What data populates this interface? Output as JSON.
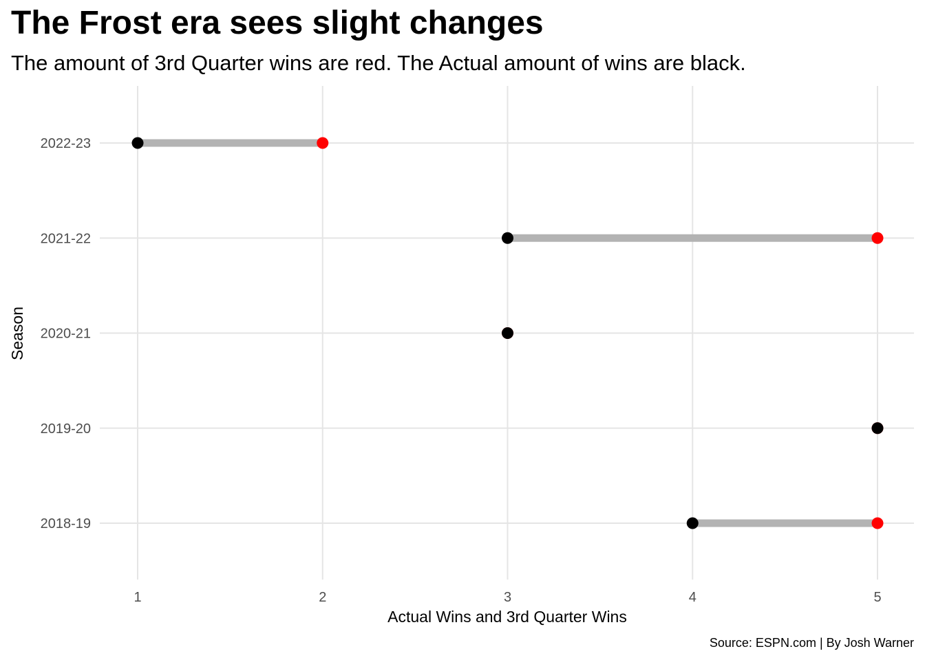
{
  "title": "The Frost era sees slight changes",
  "subtitle": "The amount of 3rd Quarter wins are red. The Actual amount of wins are black.",
  "caption": "Source: ESPN.com | By Josh Warner",
  "colors": {
    "actual": "#000000",
    "third_quarter": "#ff0000",
    "segment": "#b3b3b3",
    "grid": "#e5e5e5"
  },
  "chart_data": {
    "type": "dumbbell",
    "xlabel": "Actual Wins and 3rd Quarter Wins",
    "ylabel": "Season",
    "xlim": [
      1,
      5
    ],
    "x_ticks": [
      1,
      2,
      3,
      4,
      5
    ],
    "categories": [
      "2018-19",
      "2019-20",
      "2020-21",
      "2021-22",
      "2022-23"
    ],
    "series": [
      {
        "name": "Actual Wins",
        "color": "#000000",
        "values": [
          4,
          5,
          3,
          3,
          1
        ]
      },
      {
        "name": "3rd Quarter Wins",
        "color": "#ff0000",
        "values": [
          5,
          5,
          3,
          5,
          2
        ]
      }
    ],
    "grid": true,
    "legend": "none"
  }
}
